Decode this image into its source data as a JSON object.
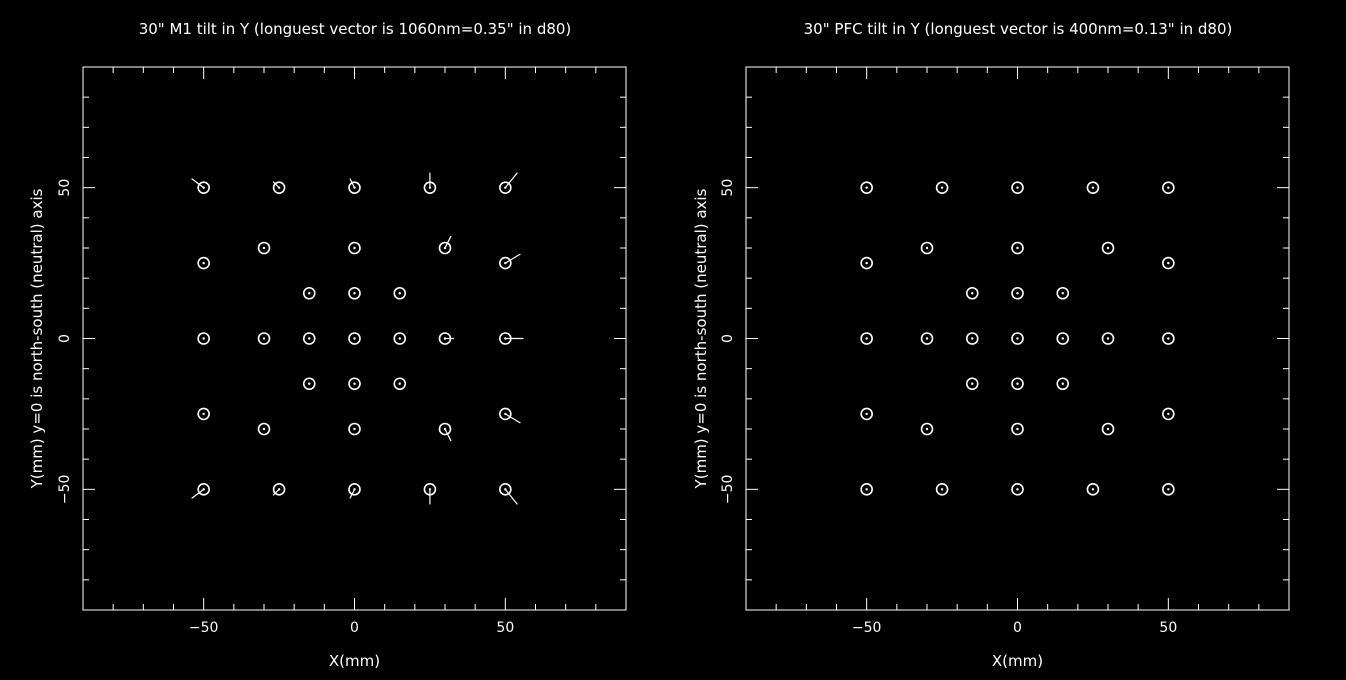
{
  "chart_data": [
    {
      "type": "scatter",
      "title": "30\" M1 tilt in Y (longuest vector is 1060nm=0.35\" in d80)",
      "xlabel": "X(mm)",
      "ylabel": "Y(mm) y=0 is north-south (neutral) axis",
      "xlim": [
        -90,
        90
      ],
      "ylim": [
        -90,
        90
      ],
      "xticks": [
        -50,
        0,
        50
      ],
      "yticks": [
        -50,
        0,
        50
      ],
      "xtick_labels": [
        "−50",
        "0",
        "50"
      ],
      "ytick_labels": [
        "−50",
        "0",
        "50"
      ],
      "points": [
        {
          "x": -50,
          "y": 50,
          "dx": -4,
          "dy": 3
        },
        {
          "x": -25,
          "y": 50,
          "dx": -2,
          "dy": 2
        },
        {
          "x": 0,
          "y": 50,
          "dx": -1.5,
          "dy": 3
        },
        {
          "x": 25,
          "y": 50,
          "dx": 0,
          "dy": 5
        },
        {
          "x": 50,
          "y": 50,
          "dx": 4,
          "dy": 5
        },
        {
          "x": -50,
          "y": 25,
          "dx": 0,
          "dy": 0
        },
        {
          "x": -30,
          "y": 30,
          "dx": 0,
          "dy": 0
        },
        {
          "x": 0,
          "y": 30,
          "dx": 0,
          "dy": 0
        },
        {
          "x": 30,
          "y": 30,
          "dx": 2,
          "dy": 4
        },
        {
          "x": 50,
          "y": 25,
          "dx": 5,
          "dy": 3
        },
        {
          "x": -15,
          "y": 15,
          "dx": 0,
          "dy": 0
        },
        {
          "x": 0,
          "y": 15,
          "dx": 0,
          "dy": 0
        },
        {
          "x": 15,
          "y": 15,
          "dx": 0,
          "dy": 0
        },
        {
          "x": -50,
          "y": 0,
          "dx": 0,
          "dy": 0
        },
        {
          "x": -30,
          "y": 0,
          "dx": 0,
          "dy": 0
        },
        {
          "x": -15,
          "y": 0,
          "dx": 0,
          "dy": 0
        },
        {
          "x": 0,
          "y": 0,
          "dx": 0,
          "dy": 0
        },
        {
          "x": 15,
          "y": 0,
          "dx": 0,
          "dy": 0
        },
        {
          "x": 30,
          "y": 0,
          "dx": 3,
          "dy": 0
        },
        {
          "x": 50,
          "y": 0,
          "dx": 6,
          "dy": 0
        },
        {
          "x": -15,
          "y": -15,
          "dx": 0,
          "dy": 0
        },
        {
          "x": 0,
          "y": -15,
          "dx": 0,
          "dy": 0
        },
        {
          "x": 15,
          "y": -15,
          "dx": 0,
          "dy": 0
        },
        {
          "x": -50,
          "y": -25,
          "dx": 0,
          "dy": 0
        },
        {
          "x": -30,
          "y": -30,
          "dx": 0,
          "dy": 0
        },
        {
          "x": 0,
          "y": -30,
          "dx": 0,
          "dy": 0
        },
        {
          "x": 30,
          "y": -30,
          "dx": 2,
          "dy": -4
        },
        {
          "x": 50,
          "y": -25,
          "dx": 5,
          "dy": -3
        },
        {
          "x": -50,
          "y": -50,
          "dx": -4,
          "dy": -3
        },
        {
          "x": -25,
          "y": -50,
          "dx": -2,
          "dy": -2
        },
        {
          "x": 0,
          "y": -50,
          "dx": -1.5,
          "dy": -3
        },
        {
          "x": 25,
          "y": -50,
          "dx": 0,
          "dy": -5
        },
        {
          "x": 50,
          "y": -50,
          "dx": 4,
          "dy": -5
        }
      ],
      "grid": false,
      "background": "#000000",
      "foreground": "#ffffff"
    },
    {
      "type": "scatter",
      "title": "30\" PFC tilt in Y (longuest vector is 400nm=0.13\" in d80)",
      "xlabel": "X(mm)",
      "ylabel": "Y(mm) y=0 is north-south (neutral) axis",
      "xlim": [
        -90,
        90
      ],
      "ylim": [
        -90,
        90
      ],
      "xticks": [
        -50,
        0,
        50
      ],
      "yticks": [
        -50,
        0,
        50
      ],
      "xtick_labels": [
        "−50",
        "0",
        "50"
      ],
      "ytick_labels": [
        "−50",
        "0",
        "50"
      ],
      "points": [
        {
          "x": -50,
          "y": 50,
          "dx": 0,
          "dy": 0
        },
        {
          "x": -25,
          "y": 50,
          "dx": 0,
          "dy": 0
        },
        {
          "x": 0,
          "y": 50,
          "dx": 0,
          "dy": 0
        },
        {
          "x": 25,
          "y": 50,
          "dx": 0,
          "dy": 0
        },
        {
          "x": 50,
          "y": 50,
          "dx": 0,
          "dy": 0
        },
        {
          "x": -50,
          "y": 25,
          "dx": 0,
          "dy": 0
        },
        {
          "x": -30,
          "y": 30,
          "dx": 0,
          "dy": 0
        },
        {
          "x": 0,
          "y": 30,
          "dx": 0,
          "dy": 0
        },
        {
          "x": 30,
          "y": 30,
          "dx": 0,
          "dy": 0
        },
        {
          "x": 50,
          "y": 25,
          "dx": 0,
          "dy": 0
        },
        {
          "x": -15,
          "y": 15,
          "dx": 0,
          "dy": 0
        },
        {
          "x": 0,
          "y": 15,
          "dx": 0,
          "dy": 0
        },
        {
          "x": 15,
          "y": 15,
          "dx": 0,
          "dy": 0
        },
        {
          "x": -50,
          "y": 0,
          "dx": 0,
          "dy": 0
        },
        {
          "x": -30,
          "y": 0,
          "dx": 0,
          "dy": 0
        },
        {
          "x": -15,
          "y": 0,
          "dx": 0,
          "dy": 0
        },
        {
          "x": 0,
          "y": 0,
          "dx": 0,
          "dy": 0
        },
        {
          "x": 15,
          "y": 0,
          "dx": 0,
          "dy": 0
        },
        {
          "x": 30,
          "y": 0,
          "dx": 0,
          "dy": 0
        },
        {
          "x": 50,
          "y": 0,
          "dx": 0,
          "dy": 0
        },
        {
          "x": -15,
          "y": -15,
          "dx": 0,
          "dy": 0
        },
        {
          "x": 0,
          "y": -15,
          "dx": 0,
          "dy": 0
        },
        {
          "x": 15,
          "y": -15,
          "dx": 0,
          "dy": 0
        },
        {
          "x": -50,
          "y": -25,
          "dx": 0,
          "dy": 0
        },
        {
          "x": -30,
          "y": -30,
          "dx": 0,
          "dy": 0
        },
        {
          "x": 0,
          "y": -30,
          "dx": 0,
          "dy": 0
        },
        {
          "x": 30,
          "y": -30,
          "dx": 0,
          "dy": 0
        },
        {
          "x": 50,
          "y": -25,
          "dx": 0,
          "dy": 0
        },
        {
          "x": -50,
          "y": -50,
          "dx": 0,
          "dy": 0
        },
        {
          "x": -25,
          "y": -50,
          "dx": 0,
          "dy": 0
        },
        {
          "x": 0,
          "y": -50,
          "dx": 0,
          "dy": 0
        },
        {
          "x": 25,
          "y": -50,
          "dx": 0,
          "dy": 0
        },
        {
          "x": 50,
          "y": -50,
          "dx": 0,
          "dy": 0
        }
      ],
      "grid": false,
      "background": "#000000",
      "foreground": "#ffffff"
    }
  ]
}
